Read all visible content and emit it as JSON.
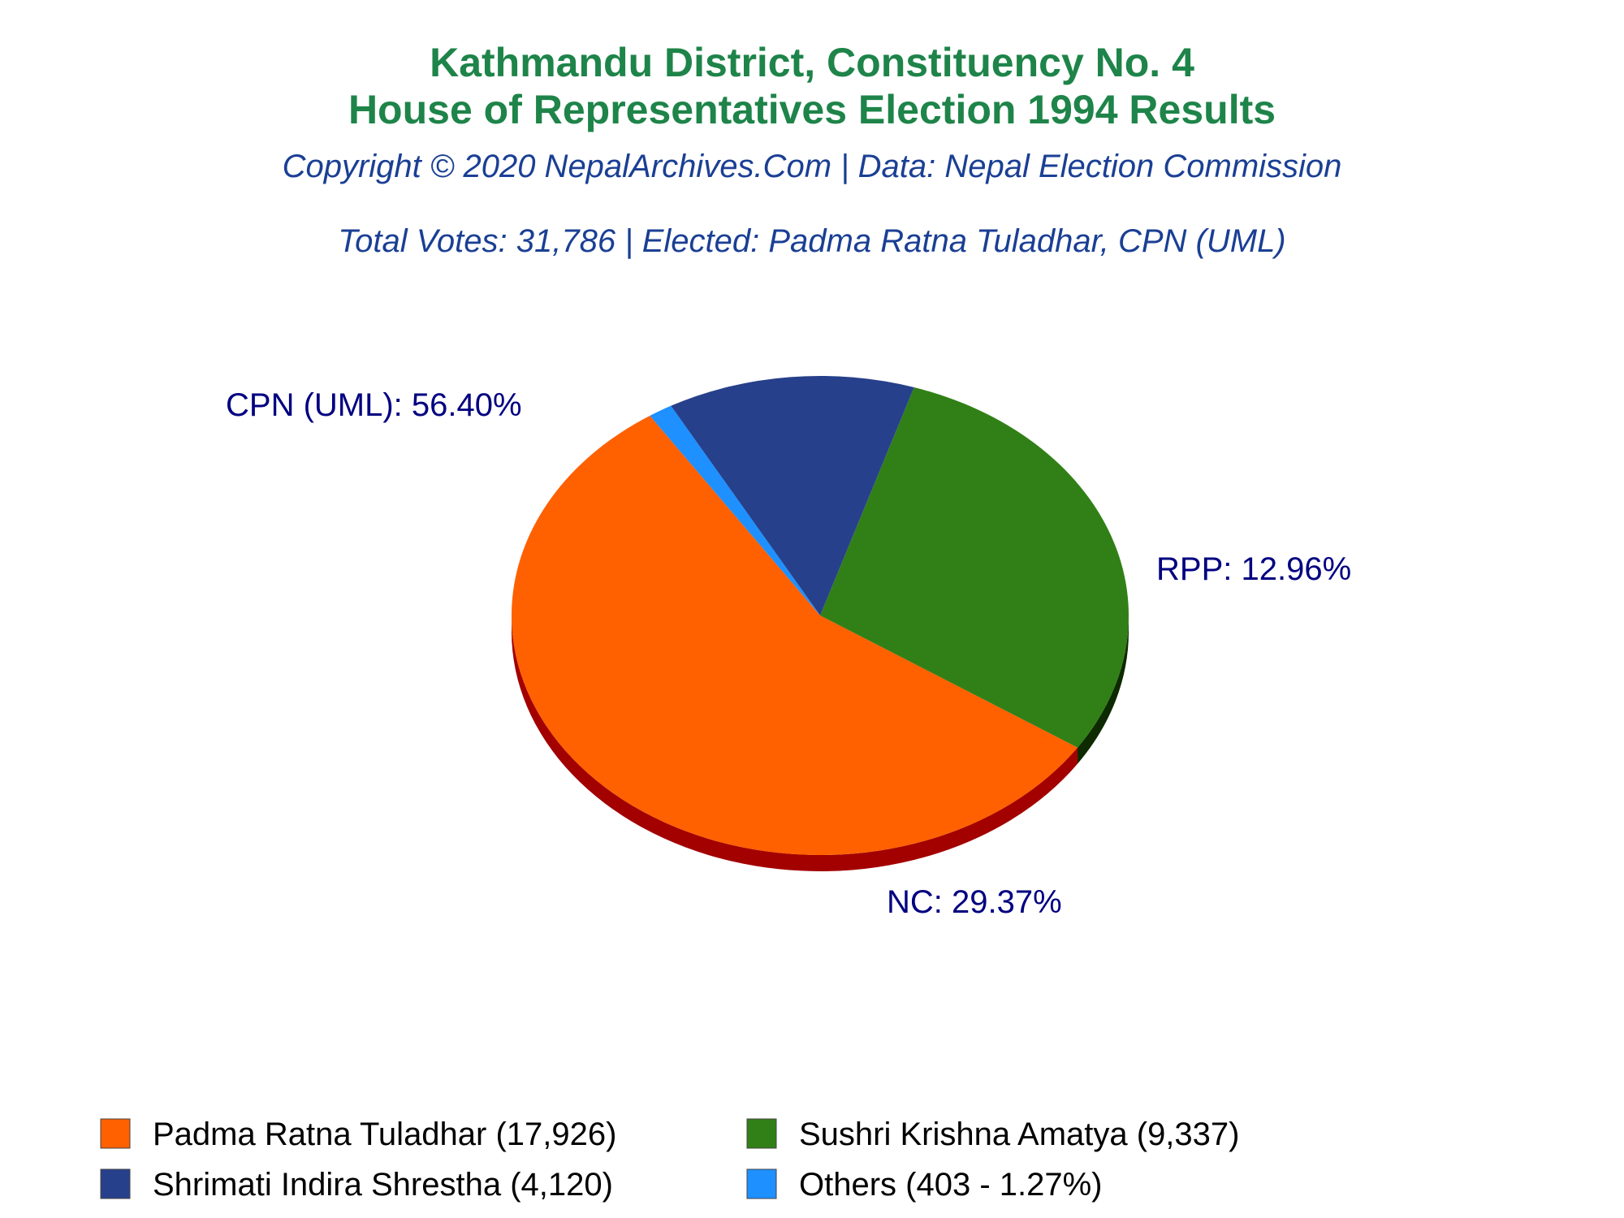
{
  "chart_data": {
    "type": "pie",
    "title": "Kathmandu District, Constituency No. 4",
    "title_line2": "House of Representatives Election 1994 Results",
    "subtitle": "Copyright © 2020 NepalArchives.Com | Data: Nepal Election Commission",
    "summary": "Total Votes: 31,786 | Elected: Padma Ratna Tuladhar, CPN (UML)",
    "total_votes": 31786,
    "slices": [
      {
        "party": "CPN (UML)",
        "candidate": "Padma Ratna Tuladhar",
        "votes": 17926,
        "percent": 56.4,
        "color": "#ff6000",
        "side_color": "#a30000",
        "label": "CPN (UML): 56.40%",
        "legend": "Padma Ratna Tuladhar (17,926)"
      },
      {
        "party": "NC",
        "candidate": "Sushri Krishna Amatya",
        "votes": 9337,
        "percent": 29.37,
        "color": "#318017",
        "side_color": "#0d2a00",
        "label": "NC: 29.37%",
        "legend": "Sushri Krishna Amatya (9,337)"
      },
      {
        "party": "RPP",
        "candidate": "Shrimati Indira Shrestha",
        "votes": 4120,
        "percent": 12.96,
        "color": "#27408b",
        "side_color": "#0a0f35",
        "label": "RPP: 12.96%",
        "legend": "Shrimati Indira Shrestha (4,120)"
      },
      {
        "party": "Others",
        "candidate": "Others",
        "votes": 403,
        "percent": 1.27,
        "color": "#1e90ff",
        "side_color": "#0b3f7a",
        "label": "",
        "legend": "Others (403 - 1.27%)"
      }
    ],
    "legend_position": "bottom",
    "start_angle_deg": 123.5,
    "direction": "counterclockwise"
  }
}
